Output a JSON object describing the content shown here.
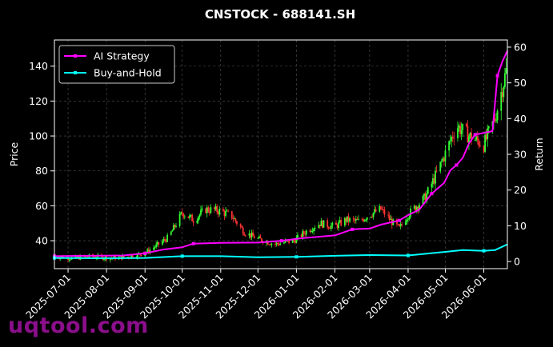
{
  "chart_data": {
    "type": "line",
    "title": "CNSTOCK - 688141.SH",
    "ylabel_left": "Price",
    "ylabel_right": "Return",
    "x_range": [
      "2025-06-20",
      "2026-06-20"
    ],
    "ylim_left": [
      24,
      155
    ],
    "ylim_right": [
      -2,
      62
    ],
    "x_ticks": [
      "2025-07-01",
      "2025-08-01",
      "2025-09-01",
      "2025-10-01",
      "2025-11-01",
      "2025-12-01",
      "2026-01-01",
      "2026-02-01",
      "2026-03-01",
      "2026-04-01",
      "2026-05-01",
      "2026-06-01"
    ],
    "y_ticks_left": [
      40,
      60,
      80,
      100,
      120,
      140
    ],
    "y_ticks_right": [
      0,
      10,
      20,
      30,
      40,
      50,
      60
    ],
    "grid": true,
    "legend_position": "top-left",
    "candle_colors": {
      "up": "#33ff33",
      "down": "#ff3333"
    },
    "price_candles_close": [
      {
        "date": "2025-06-20",
        "close": 31
      },
      {
        "date": "2025-07-05",
        "close": 30
      },
      {
        "date": "2025-07-20",
        "close": 31
      },
      {
        "date": "2025-08-05",
        "close": 30
      },
      {
        "date": "2025-08-20",
        "close": 31
      },
      {
        "date": "2025-09-01",
        "close": 33
      },
      {
        "date": "2025-09-10",
        "close": 37
      },
      {
        "date": "2025-09-20",
        "close": 42
      },
      {
        "date": "2025-10-01",
        "close": 56
      },
      {
        "date": "2025-10-10",
        "close": 52
      },
      {
        "date": "2025-10-20",
        "close": 58
      },
      {
        "date": "2025-11-01",
        "close": 57
      },
      {
        "date": "2025-11-10",
        "close": 54
      },
      {
        "date": "2025-11-20",
        "close": 45
      },
      {
        "date": "2025-12-01",
        "close": 41
      },
      {
        "date": "2025-12-15",
        "close": 38
      },
      {
        "date": "2025-12-30",
        "close": 40
      },
      {
        "date": "2026-01-10",
        "close": 46
      },
      {
        "date": "2026-01-20",
        "close": 50
      },
      {
        "date": "2026-02-01",
        "close": 48
      },
      {
        "date": "2026-02-10",
        "close": 52
      },
      {
        "date": "2026-02-20",
        "close": 51
      },
      {
        "date": "2026-03-01",
        "close": 55
      },
      {
        "date": "2026-03-10",
        "close": 58
      },
      {
        "date": "2026-03-20",
        "close": 50
      },
      {
        "date": "2026-03-25",
        "close": 47
      },
      {
        "date": "2026-04-01",
        "close": 55
      },
      {
        "date": "2026-04-15",
        "close": 65
      },
      {
        "date": "2026-04-25",
        "close": 80
      },
      {
        "date": "2026-05-01",
        "close": 90
      },
      {
        "date": "2026-05-10",
        "close": 106
      },
      {
        "date": "2026-05-20",
        "close": 100
      },
      {
        "date": "2026-06-01",
        "close": 95
      },
      {
        "date": "2026-06-10",
        "close": 110
      },
      {
        "date": "2026-06-20",
        "close": 140
      }
    ],
    "series": [
      {
        "name": "AI Strategy",
        "color": "#ff00ff",
        "axis": "right",
        "points": [
          {
            "date": "2025-06-20",
            "value": 1.5
          },
          {
            "date": "2025-07-15",
            "value": 1.6
          },
          {
            "date": "2025-08-15",
            "value": 1.7
          },
          {
            "date": "2025-09-01",
            "value": 2.3
          },
          {
            "date": "2025-09-15",
            "value": 3.3
          },
          {
            "date": "2025-10-01",
            "value": 4.0
          },
          {
            "date": "2025-10-10",
            "value": 5.0
          },
          {
            "date": "2025-11-01",
            "value": 5.2
          },
          {
            "date": "2025-12-01",
            "value": 5.3
          },
          {
            "date": "2025-12-20",
            "value": 5.8
          },
          {
            "date": "2026-01-05",
            "value": 6.5
          },
          {
            "date": "2026-02-01",
            "value": 7.3
          },
          {
            "date": "2026-02-15",
            "value": 9.0
          },
          {
            "date": "2026-03-01",
            "value": 9.2
          },
          {
            "date": "2026-03-10",
            "value": 10.3
          },
          {
            "date": "2026-03-25",
            "value": 11.5
          },
          {
            "date": "2026-04-01",
            "value": 13.0
          },
          {
            "date": "2026-04-10",
            "value": 14.5
          },
          {
            "date": "2026-04-20",
            "value": 19.0
          },
          {
            "date": "2026-04-30",
            "value": 22.0
          },
          {
            "date": "2026-05-05",
            "value": 25.5
          },
          {
            "date": "2026-05-10",
            "value": 27.0
          },
          {
            "date": "2026-05-15",
            "value": 29.0
          },
          {
            "date": "2026-05-20",
            "value": 33.0
          },
          {
            "date": "2026-05-25",
            "value": 35.5
          },
          {
            "date": "2026-06-01",
            "value": 36.0
          },
          {
            "date": "2026-06-08",
            "value": 36.5
          },
          {
            "date": "2026-06-12",
            "value": 52.0
          },
          {
            "date": "2026-06-16",
            "value": 56.0
          },
          {
            "date": "2026-06-20",
            "value": 59.0
          }
        ]
      },
      {
        "name": "Buy-and-Hold",
        "color": "#00ffff",
        "axis": "right",
        "points": [
          {
            "date": "2025-06-20",
            "value": 1.0
          },
          {
            "date": "2025-08-01",
            "value": 0.9
          },
          {
            "date": "2025-09-01",
            "value": 1.0
          },
          {
            "date": "2025-10-01",
            "value": 1.5
          },
          {
            "date": "2025-11-01",
            "value": 1.5
          },
          {
            "date": "2025-12-01",
            "value": 1.2
          },
          {
            "date": "2026-01-01",
            "value": 1.3
          },
          {
            "date": "2026-02-01",
            "value": 1.6
          },
          {
            "date": "2026-03-01",
            "value": 1.8
          },
          {
            "date": "2026-04-01",
            "value": 1.7
          },
          {
            "date": "2026-05-01",
            "value": 2.7
          },
          {
            "date": "2026-05-15",
            "value": 3.2
          },
          {
            "date": "2026-06-01",
            "value": 3.0
          },
          {
            "date": "2026-06-10",
            "value": 3.2
          },
          {
            "date": "2026-06-20",
            "value": 4.8
          }
        ]
      }
    ]
  },
  "watermark": "uqtool.com"
}
